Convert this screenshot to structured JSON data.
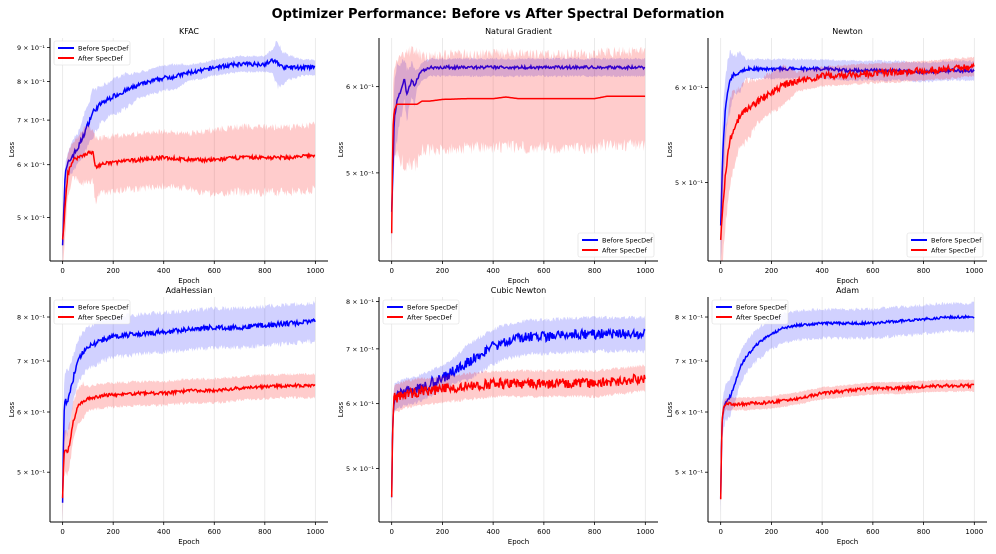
{
  "figure_title": "Optimizer Performance: Before vs After Spectral Deformation",
  "chart_data": [
    {
      "type": "line",
      "title": "KFAC",
      "xlabel": "Epoch",
      "ylabel": "Loss",
      "yscale": "log",
      "xlim": [
        -50,
        1050
      ],
      "ylim": [
        0.43,
        0.93
      ],
      "xticks": [
        0,
        200,
        400,
        600,
        800,
        1000
      ],
      "yticks": [
        {
          "value": 0.5,
          "label": "5 × 10⁻¹"
        },
        {
          "value": 0.6,
          "label": "6 × 10⁻¹"
        },
        {
          "value": 0.7,
          "label": "7 × 10⁻¹"
        },
        {
          "value": 0.8,
          "label": "8 × 10⁻¹"
        },
        {
          "value": 0.9,
          "label": "9 × 10⁻¹"
        }
      ],
      "legend": "top-left",
      "series": [
        {
          "name": "Before SpecDef",
          "color": "#0000ff",
          "x": [
            0,
            10,
            20,
            40,
            60,
            80,
            100,
            120,
            150,
            200,
            250,
            300,
            350,
            400,
            450,
            500,
            550,
            600,
            650,
            700,
            750,
            800,
            830,
            850,
            870,
            900,
            950,
            1000
          ],
          "values": [
            0.46,
            0.58,
            0.6,
            0.62,
            0.635,
            0.66,
            0.69,
            0.72,
            0.74,
            0.76,
            0.775,
            0.79,
            0.8,
            0.81,
            0.815,
            0.825,
            0.83,
            0.84,
            0.845,
            0.85,
            0.85,
            0.85,
            0.86,
            0.855,
            0.84,
            0.84,
            0.84,
            0.84
          ],
          "band": [
            0.03,
            0.02,
            0.02,
            0.03,
            0.03,
            0.04,
            0.04,
            0.05,
            0.04,
            0.04,
            0.04,
            0.03,
            0.03,
            0.03,
            0.03,
            0.02,
            0.02,
            0.02,
            0.02,
            0.02,
            0.02,
            0.02,
            0.03,
            0.06,
            0.04,
            0.03,
            0.02,
            0.02
          ],
          "noise": 0.006
        },
        {
          "name": "After SpecDef",
          "color": "#ff0000",
          "x": [
            0,
            10,
            20,
            40,
            60,
            80,
            100,
            120,
            130,
            150,
            200,
            300,
            400,
            500,
            600,
            700,
            800,
            900,
            1000
          ],
          "values": [
            0.46,
            0.52,
            0.58,
            0.61,
            0.615,
            0.62,
            0.625,
            0.625,
            0.595,
            0.6,
            0.605,
            0.61,
            0.615,
            0.61,
            0.61,
            0.615,
            0.615,
            0.615,
            0.62
          ],
          "band": [
            0.04,
            0.04,
            0.04,
            0.03,
            0.04,
            0.05,
            0.05,
            0.05,
            0.06,
            0.05,
            0.05,
            0.05,
            0.05,
            0.05,
            0.06,
            0.06,
            0.06,
            0.06,
            0.06
          ],
          "noise": 0.004
        }
      ]
    },
    {
      "type": "line",
      "title": "Natural Gradient",
      "xlabel": "Epoch",
      "ylabel": "Loss",
      "yscale": "log",
      "xlim": [
        -50,
        1050
      ],
      "ylim": [
        0.415,
        0.665
      ],
      "xticks": [
        0,
        200,
        400,
        600,
        800,
        1000
      ],
      "yticks": [
        {
          "value": 0.5,
          "label": "5 × 10⁻¹"
        },
        {
          "value": 0.6,
          "label": "6 × 10⁻¹"
        }
      ],
      "legend": "bottom-right",
      "series": [
        {
          "name": "Before SpecDef",
          "color": "#0000ff",
          "x": [
            0,
            5,
            10,
            20,
            30,
            40,
            50,
            60,
            70,
            80,
            90,
            100,
            120,
            150,
            200,
            300,
            400,
            500,
            600,
            700,
            800,
            900,
            950,
            1000
          ],
          "values": [
            0.46,
            0.5,
            0.56,
            0.58,
            0.59,
            0.6,
            0.61,
            0.59,
            0.6,
            0.61,
            0.6,
            0.61,
            0.62,
            0.625,
            0.625,
            0.625,
            0.625,
            0.625,
            0.625,
            0.625,
            0.625,
            0.625,
            0.625,
            0.625
          ],
          "band": [
            0.03,
            0.03,
            0.04,
            0.04,
            0.03,
            0.03,
            0.02,
            0.03,
            0.02,
            0.02,
            0.02,
            0.01,
            0.01,
            0.01,
            0.01,
            0.01,
            0.01,
            0.01,
            0.01,
            0.01,
            0.01,
            0.01,
            0.01,
            0.01
          ],
          "noise": 0.002
        },
        {
          "name": "After SpecDef",
          "color": "#ff0000",
          "x": [
            0,
            5,
            10,
            20,
            50,
            100,
            120,
            150,
            200,
            300,
            400,
            450,
            500,
            600,
            700,
            800,
            850,
            900,
            1000
          ],
          "values": [
            0.44,
            0.55,
            0.57,
            0.578,
            0.578,
            0.578,
            0.582,
            0.582,
            0.584,
            0.585,
            0.585,
            0.587,
            0.585,
            0.585,
            0.585,
            0.585,
            0.588,
            0.588,
            0.588
          ],
          "band": [
            0.02,
            0.04,
            0.05,
            0.05,
            0.06,
            0.06,
            0.05,
            0.05,
            0.05,
            0.05,
            0.05,
            0.05,
            0.05,
            0.05,
            0.05,
            0.05,
            0.05,
            0.05,
            0.05
          ],
          "noise": 0.0
        }
      ]
    },
    {
      "type": "line",
      "title": "Newton",
      "xlabel": "Epoch",
      "ylabel": "Loss",
      "yscale": "log",
      "xlim": [
        -50,
        1050
      ],
      "ylim": [
        0.43,
        0.66
      ],
      "xticks": [
        0,
        200,
        400,
        600,
        800,
        1000
      ],
      "yticks": [
        {
          "value": 0.5,
          "label": "5 × 10⁻¹"
        },
        {
          "value": 0.6,
          "label": "6 × 10⁻¹"
        }
      ],
      "legend": "bottom-right",
      "series": [
        {
          "name": "Before SpecDef",
          "color": "#0000ff",
          "x": [
            0,
            5,
            10,
            20,
            30,
            40,
            50,
            60,
            80,
            100,
            150,
            200,
            300,
            400,
            500,
            600,
            700,
            800,
            900,
            1000
          ],
          "values": [
            0.46,
            0.5,
            0.54,
            0.58,
            0.6,
            0.61,
            0.615,
            0.615,
            0.62,
            0.622,
            0.622,
            0.622,
            0.622,
            0.622,
            0.62,
            0.62,
            0.62,
            0.618,
            0.62,
            0.62
          ],
          "band": [
            0.03,
            0.04,
            0.04,
            0.03,
            0.03,
            0.03,
            0.02,
            0.02,
            0.02,
            0.01,
            0.01,
            0.01,
            0.01,
            0.01,
            0.01,
            0.01,
            0.01,
            0.01,
            0.01,
            0.01
          ],
          "noise": 0.002
        },
        {
          "name": "After SpecDef",
          "color": "#ff0000",
          "x": [
            0,
            10,
            20,
            30,
            40,
            60,
            80,
            100,
            150,
            200,
            250,
            300,
            350,
            400,
            500,
            600,
            700,
            800,
            900,
            1000
          ],
          "values": [
            0.45,
            0.48,
            0.51,
            0.53,
            0.545,
            0.56,
            0.57,
            0.575,
            0.585,
            0.595,
            0.603,
            0.607,
            0.61,
            0.613,
            0.615,
            0.617,
            0.618,
            0.62,
            0.622,
            0.625
          ],
          "band": [
            0.03,
            0.04,
            0.04,
            0.04,
            0.04,
            0.03,
            0.03,
            0.03,
            0.02,
            0.02,
            0.02,
            0.01,
            0.01,
            0.01,
            0.01,
            0.01,
            0.01,
            0.01,
            0.01,
            0.01
          ],
          "noise": 0.004
        }
      ]
    },
    {
      "type": "line",
      "title": "AdaHessian",
      "xlabel": "Epoch",
      "ylabel": "Loss",
      "yscale": "log",
      "xlim": [
        -50,
        1050
      ],
      "ylim": [
        0.43,
        0.85
      ],
      "xticks": [
        0,
        200,
        400,
        600,
        800,
        1000
      ],
      "yticks": [
        {
          "value": 0.5,
          "label": "5 × 10⁻¹"
        },
        {
          "value": 0.6,
          "label": "6 × 10⁻¹"
        },
        {
          "value": 0.7,
          "label": "7 × 10⁻¹"
        },
        {
          "value": 0.8,
          "label": "8 × 10⁻¹"
        }
      ],
      "legend": "top-left",
      "series": [
        {
          "name": "Before SpecDef",
          "color": "#0000ff",
          "x": [
            0,
            5,
            10,
            20,
            30,
            40,
            50,
            60,
            80,
            100,
            150,
            200,
            300,
            400,
            500,
            600,
            700,
            800,
            900,
            1000
          ],
          "values": [
            0.46,
            0.6,
            0.62,
            0.62,
            0.64,
            0.66,
            0.68,
            0.7,
            0.72,
            0.73,
            0.745,
            0.755,
            0.76,
            0.765,
            0.77,
            0.775,
            0.775,
            0.78,
            0.785,
            0.79
          ],
          "band": [
            0.04,
            0.05,
            0.05,
            0.05,
            0.05,
            0.04,
            0.04,
            0.04,
            0.04,
            0.04,
            0.04,
            0.04,
            0.04,
            0.04,
            0.04,
            0.04,
            0.04,
            0.04,
            0.04,
            0.04
          ],
          "noise": 0.006
        },
        {
          "name": "After SpecDef",
          "color": "#ff0000",
          "x": [
            0,
            5,
            10,
            20,
            30,
            40,
            60,
            80,
            100,
            150,
            200,
            300,
            400,
            500,
            600,
            700,
            800,
            900,
            1000
          ],
          "values": [
            0.46,
            0.53,
            0.535,
            0.53,
            0.55,
            0.58,
            0.61,
            0.62,
            0.625,
            0.63,
            0.632,
            0.635,
            0.635,
            0.64,
            0.64,
            0.645,
            0.648,
            0.65,
            0.65
          ],
          "band": [
            0.03,
            0.03,
            0.03,
            0.03,
            0.03,
            0.03,
            0.03,
            0.03,
            0.02,
            0.02,
            0.02,
            0.02,
            0.02,
            0.02,
            0.02,
            0.02,
            0.02,
            0.02,
            0.02
          ],
          "noise": 0.003
        }
      ]
    },
    {
      "type": "line",
      "title": "Cubic Newton",
      "xlabel": "Epoch",
      "ylabel": "Loss",
      "yscale": "log",
      "xlim": [
        -50,
        1050
      ],
      "ylim": [
        0.43,
        0.81
      ],
      "xticks": [
        0,
        200,
        400,
        600,
        800,
        1000
      ],
      "yticks": [
        {
          "value": 0.5,
          "label": "5 × 10⁻¹"
        },
        {
          "value": 0.6,
          "label": "6 × 10⁻¹"
        },
        {
          "value": 0.7,
          "label": "7 × 10⁻¹"
        },
        {
          "value": 0.8,
          "label": "8 × 10⁻¹"
        }
      ],
      "legend": "top-left",
      "series": [
        {
          "name": "Before SpecDef",
          "color": "#0000ff",
          "x": [
            0,
            5,
            10,
            20,
            50,
            100,
            150,
            200,
            250,
            300,
            350,
            400,
            450,
            500,
            550,
            600,
            700,
            800,
            900,
            1000
          ],
          "values": [
            0.46,
            0.58,
            0.61,
            0.615,
            0.62,
            0.625,
            0.635,
            0.645,
            0.66,
            0.675,
            0.69,
            0.705,
            0.715,
            0.72,
            0.725,
            0.725,
            0.728,
            0.73,
            0.73,
            0.73
          ],
          "band": [
            0.02,
            0.02,
            0.02,
            0.02,
            0.02,
            0.02,
            0.02,
            0.02,
            0.02,
            0.03,
            0.03,
            0.03,
            0.03,
            0.03,
            0.03,
            0.03,
            0.03,
            0.03,
            0.03,
            0.03
          ],
          "noise": 0.01
        },
        {
          "name": "After SpecDef",
          "color": "#ff0000",
          "x": [
            0,
            5,
            10,
            20,
            50,
            100,
            200,
            300,
            400,
            500,
            600,
            700,
            800,
            900,
            1000
          ],
          "values": [
            0.46,
            0.58,
            0.61,
            0.61,
            0.615,
            0.62,
            0.625,
            0.63,
            0.635,
            0.635,
            0.635,
            0.635,
            0.635,
            0.64,
            0.645
          ],
          "band": [
            0.02,
            0.02,
            0.02,
            0.02,
            0.02,
            0.02,
            0.02,
            0.02,
            0.02,
            0.02,
            0.02,
            0.02,
            0.02,
            0.02,
            0.02
          ],
          "noise": 0.009
        }
      ]
    },
    {
      "type": "line",
      "title": "Adam",
      "xlabel": "Epoch",
      "ylabel": "Loss",
      "yscale": "log",
      "xlim": [
        -50,
        1050
      ],
      "ylim": [
        0.43,
        0.85
      ],
      "xticks": [
        0,
        200,
        400,
        600,
        800,
        1000
      ],
      "yticks": [
        {
          "value": 0.5,
          "label": "5 × 10⁻¹"
        },
        {
          "value": 0.6,
          "label": "6 × 10⁻¹"
        },
        {
          "value": 0.7,
          "label": "7 × 10⁻¹"
        },
        {
          "value": 0.8,
          "label": "8 × 10⁻¹"
        }
      ],
      "legend": "top-left",
      "series": [
        {
          "name": "Before SpecDef",
          "color": "#0000ff",
          "x": [
            0,
            5,
            10,
            20,
            40,
            60,
            80,
            100,
            150,
            200,
            250,
            300,
            400,
            500,
            600,
            700,
            800,
            900,
            1000
          ],
          "values": [
            0.46,
            0.58,
            0.6,
            0.62,
            0.63,
            0.66,
            0.69,
            0.71,
            0.74,
            0.76,
            0.775,
            0.78,
            0.785,
            0.785,
            0.785,
            0.79,
            0.795,
            0.8,
            0.8
          ],
          "band": [
            0.02,
            0.03,
            0.03,
            0.03,
            0.03,
            0.03,
            0.03,
            0.03,
            0.03,
            0.03,
            0.03,
            0.03,
            0.03,
            0.03,
            0.03,
            0.03,
            0.03,
            0.03,
            0.03
          ],
          "noise": 0.003
        },
        {
          "name": "After SpecDef",
          "color": "#ff0000",
          "x": [
            0,
            5,
            10,
            20,
            50,
            100,
            200,
            300,
            400,
            500,
            600,
            700,
            800,
            900,
            1000
          ],
          "values": [
            0.46,
            0.58,
            0.605,
            0.615,
            0.615,
            0.615,
            0.618,
            0.625,
            0.635,
            0.64,
            0.645,
            0.645,
            0.648,
            0.65,
            0.65
          ],
          "band": [
            0.01,
            0.01,
            0.01,
            0.01,
            0.01,
            0.01,
            0.01,
            0.01,
            0.01,
            0.01,
            0.01,
            0.01,
            0.01,
            0.01,
            0.01
          ],
          "noise": 0.003
        }
      ]
    }
  ]
}
